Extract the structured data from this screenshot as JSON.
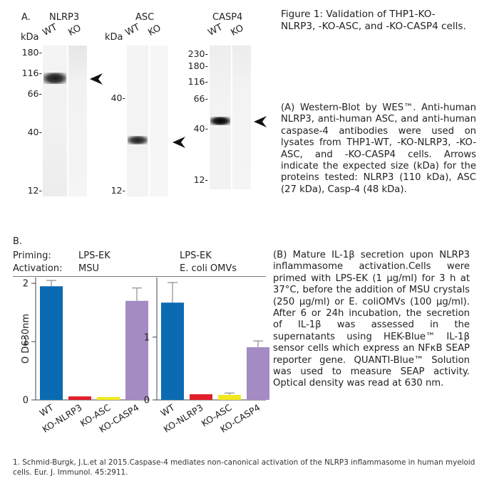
{
  "panelA": {
    "panel_label": "A.",
    "kda_label": "kDa",
    "blots": [
      {
        "title": "NLRP3",
        "lanes": [
          "WT",
          "KO"
        ],
        "markers": [
          "180-",
          "116-",
          "66-",
          "40-",
          "12-"
        ]
      },
      {
        "title": "ASC",
        "lanes": [
          "WT",
          "KO"
        ],
        "markers": [
          "40-",
          "12-"
        ]
      },
      {
        "title": "CASP4",
        "lanes": [
          "WT",
          "KO"
        ],
        "markers": [
          "230-",
          "180-",
          "116-",
          "66-",
          "40-",
          "12-"
        ]
      }
    ],
    "figure_title": "Figure 1: Validation of THP1-KO-NLRP3, -KO-ASC, and -KO-CASP4 cells.",
    "caption_a": "(A) Western-Blot by WES™. Anti-human NLRP3, anti-human ASC, and anti-human caspase-4 antibodies were used on lysates from THP1-WT, -KO-NLRP3, -KO-ASC, and -KO-CASP4 cells. Arrows indicate the expected size (kDa) for the proteins tested: NLRP3 (110 kDa), ASC (27 kDa), Casp-4 (48 kDa)."
  },
  "panelB": {
    "panel_label": "B.",
    "priming_label": "Priming:",
    "activation_label": "Activation:",
    "ylabel": "O D630nm",
    "caption_b": "(B) Mature IL-1β secretion upon NLRP3 inflammasome activation.Cells were primed with LPS-EK (1 μg/ml) for 3 h at 37°C, before the addition of MSU crystals (250 μg/ml) or E. coliOMVs (100 μg/ml). After 6 or 24h incubation, the secretion of IL-1β was assessed in the supernatants using HEK-Blue™ IL-1β sensor cells which express an NFκB SEAP reporter gene. QUANTI-Blue™ Solution was used to measure SEAP activity. Optical density was read at 630 nm."
  },
  "reference": "1. Schmid-Burgk, J.L.et al 2015.Caspase-4 mediates non-canonical activation of the NLRP3 inflammasome in human myeloid cells. Eur. J. Immunol. 45:2911.",
  "chart_data": [
    {
      "type": "bar",
      "priming": "LPS-EK",
      "activation": "MSU",
      "categories": [
        "WT",
        "KO-NLRP3",
        "KO-ASC",
        "KO-CASP4"
      ],
      "values": [
        1.95,
        0.06,
        0.05,
        1.7
      ],
      "errors": [
        0.1,
        0.0,
        0.0,
        0.22
      ],
      "colors": [
        "#0a6bb2",
        "#e01f2a",
        "#f2e81f",
        "#a58bc4"
      ],
      "ylabel": "O D630nm",
      "ylim": [
        0,
        2.1
      ],
      "yticks": [
        0,
        1,
        2
      ]
    },
    {
      "type": "bar",
      "priming": "LPS-EK",
      "activation": "E. coli OMVs",
      "categories": [
        "WT",
        "KO-NLRP3",
        "KO-ASC",
        "KO-CASP4"
      ],
      "values": [
        1.55,
        0.09,
        0.08,
        0.84
      ],
      "errors": [
        0.32,
        0.0,
        0.03,
        0.1
      ],
      "colors": [
        "#0a6bb2",
        "#e01f2a",
        "#f2e81f",
        "#a58bc4"
      ],
      "ylim": [
        0,
        1.95
      ],
      "yticks": [
        0,
        1
      ]
    }
  ]
}
